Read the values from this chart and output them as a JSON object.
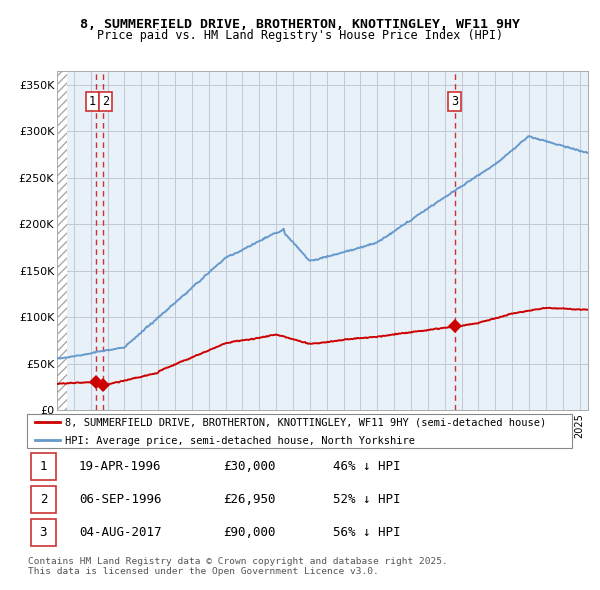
{
  "title": "8, SUMMERFIELD DRIVE, BROTHERTON, KNOTTINGLEY, WF11 9HY",
  "subtitle": "Price paid vs. HM Land Registry's House Price Index (HPI)",
  "ylabel_ticks": [
    "£0",
    "£50K",
    "£100K",
    "£150K",
    "£200K",
    "£250K",
    "£300K",
    "£350K"
  ],
  "ytick_vals": [
    0,
    50000,
    100000,
    150000,
    200000,
    250000,
    300000,
    350000
  ],
  "ylim": [
    0,
    365000
  ],
  "xlim_start": 1994.0,
  "xlim_end": 2025.5,
  "price_paid_color": "#cc0000",
  "hpi_line_color": "#6699cc",
  "vline_color": "#cc3333",
  "background_color": "#ffffff",
  "plot_bg_color": "#e8f0f8",
  "grid_color": "#c0c8d8",
  "legend_label_red": "8, SUMMERFIELD DRIVE, BROTHERTON, KNOTTINGLEY, WF11 9HY (semi-detached house)",
  "legend_label_blue": "HPI: Average price, semi-detached house, North Yorkshire",
  "transactions": [
    {
      "num": 1,
      "date": "19-APR-1996",
      "price": 30000,
      "pct": "46% ↓ HPI",
      "x": 1996.3
    },
    {
      "num": 2,
      "date": "06-SEP-1996",
      "price": 26950,
      "pct": "52% ↓ HPI",
      "x": 1996.7
    },
    {
      "num": 3,
      "date": "04-AUG-2017",
      "price": 90000,
      "pct": "56% ↓ HPI",
      "x": 2017.6
    }
  ],
  "footnote": "Contains HM Land Registry data © Crown copyright and database right 2025.\nThis data is licensed under the Open Government Licence v3.0."
}
